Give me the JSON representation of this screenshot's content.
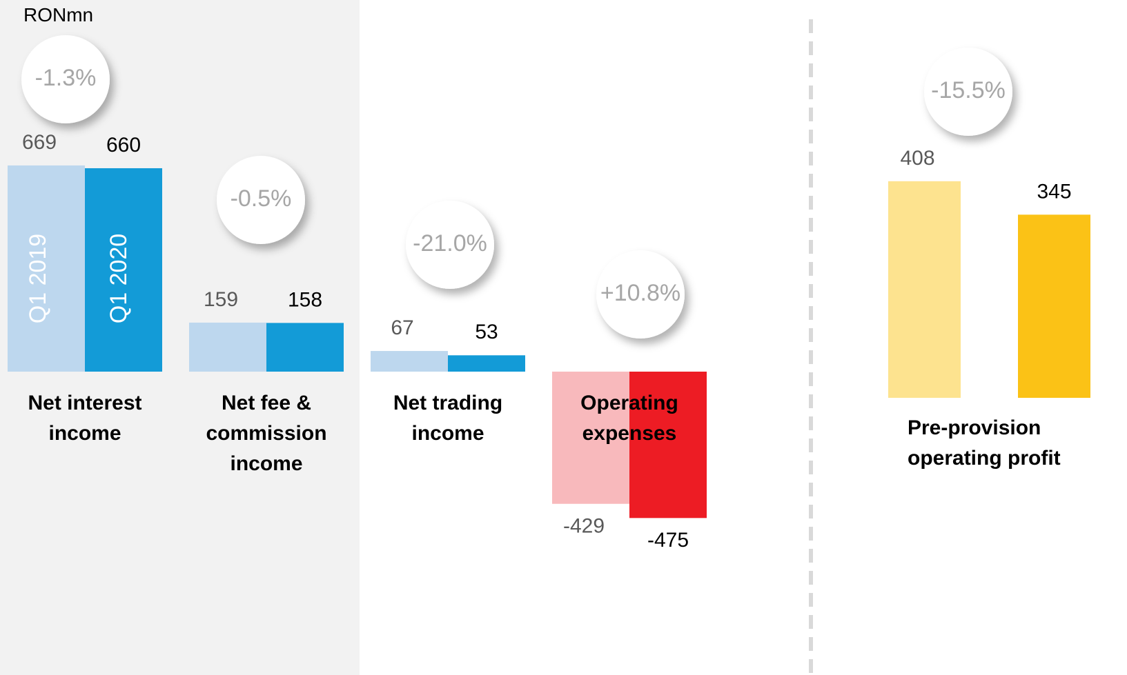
{
  "chart_data": [
    {
      "type": "bar",
      "unit_label": "RONmn",
      "categories": [
        "Net interest income",
        "Net fee & commission income",
        "Net trading income",
        "Operating expenses"
      ],
      "changes": [
        "-1.3%",
        "-0.5%",
        "-21.0%",
        "+10.8%"
      ],
      "series": [
        {
          "name": "Q1 2019",
          "colors": [
            "#bdd7ee",
            "#bdd7ee",
            "#bdd7ee",
            "#f8b9bc"
          ],
          "values": [
            669,
            159,
            67,
            -429
          ]
        },
        {
          "name": "Q1 2020",
          "colors": [
            "#139bd7",
            "#139bd7",
            "#139bd7",
            "#ed1c24"
          ],
          "values": [
            660,
            158,
            53,
            -475
          ]
        }
      ]
    },
    {
      "type": "bar",
      "categories": [
        "Pre-provision operating profit"
      ],
      "changes": [
        "-15.5%"
      ],
      "series": [
        {
          "colors": [
            "#fde38f"
          ],
          "values": [
            408
          ]
        },
        {
          "colors": [
            "#fbc216"
          ],
          "values": [
            345
          ]
        }
      ]
    }
  ]
}
